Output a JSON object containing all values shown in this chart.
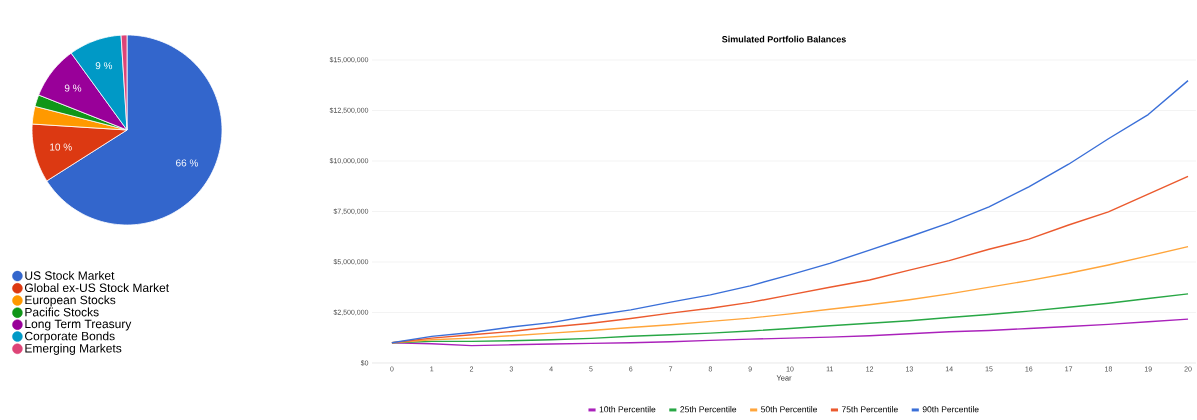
{
  "chart_data": [
    {
      "type": "pie",
      "categories": [
        "US Stock Market",
        "Global ex-US Stock Market",
        "European Stocks",
        "Pacific Stocks",
        "Long Term Treasury",
        "Corporate Bonds",
        "Emerging Markets"
      ],
      "values": [
        66,
        10,
        3,
        2,
        9,
        9,
        1
      ],
      "colors": [
        "#3366cc",
        "#dc3912",
        "#ff9900",
        "#109618",
        "#990099",
        "#0099c6",
        "#dd4477"
      ],
      "value_labels": [
        "66 %",
        "10 %",
        null,
        null,
        "9 %",
        "9 %",
        null
      ],
      "legend": "bottom"
    },
    {
      "type": "line",
      "title": "Simulated Portfolio Balances",
      "xlabel": "Year",
      "x": [
        0,
        1,
        2,
        3,
        4,
        5,
        6,
        7,
        8,
        9,
        10,
        11,
        12,
        13,
        14,
        15,
        16,
        17,
        18,
        19,
        20
      ],
      "series": [
        {
          "name": "10th Percentile",
          "color": "#aa22bb",
          "values": [
            1000000,
            950000,
            860000,
            900000,
            940000,
            970000,
            1000000,
            1050000,
            1120000,
            1180000,
            1230000,
            1280000,
            1350000,
            1450000,
            1550000,
            1610000,
            1710000,
            1810000,
            1910000,
            2040000,
            2170000
          ]
        },
        {
          "name": "25th Percentile",
          "color": "#28a745",
          "values": [
            1000000,
            1070000,
            1070000,
            1100000,
            1150000,
            1220000,
            1320000,
            1400000,
            1480000,
            1580000,
            1710000,
            1840000,
            1970000,
            2090000,
            2250000,
            2400000,
            2570000,
            2760000,
            2960000,
            3190000,
            3420000
          ]
        },
        {
          "name": "50th Percentile",
          "color": "#ffa53b",
          "values": [
            1000000,
            1150000,
            1230000,
            1350000,
            1480000,
            1610000,
            1760000,
            1890000,
            2060000,
            2220000,
            2430000,
            2660000,
            2880000,
            3130000,
            3420000,
            3750000,
            4080000,
            4440000,
            4850000,
            5300000,
            5760000
          ]
        },
        {
          "name": "75th Percentile",
          "color": "#eb5a2e",
          "values": [
            1000000,
            1230000,
            1400000,
            1560000,
            1780000,
            1970000,
            2200000,
            2470000,
            2710000,
            3000000,
            3370000,
            3750000,
            4110000,
            4600000,
            5070000,
            5630000,
            6130000,
            6830000,
            7480000,
            8360000,
            9240000
          ]
        },
        {
          "name": "90th Percentile",
          "color": "#3a6fd8",
          "values": [
            1000000,
            1320000,
            1510000,
            1780000,
            2000000,
            2340000,
            2630000,
            3010000,
            3370000,
            3820000,
            4360000,
            4930000,
            5590000,
            6250000,
            6940000,
            7730000,
            8720000,
            9840000,
            11100000,
            12300000,
            13980000
          ]
        }
      ],
      "xlim": [
        -0.5,
        20.2
      ],
      "ylim": [
        0,
        15000000
      ],
      "xticks": [
        0,
        1,
        2,
        3,
        4,
        5,
        6,
        7,
        8,
        9,
        10,
        11,
        12,
        13,
        14,
        15,
        16,
        17,
        18,
        19,
        20
      ],
      "yticks": [
        {
          "value": 0,
          "label": "$0"
        },
        {
          "value": 2500000,
          "label": "$2,500,000"
        },
        {
          "value": 5000000,
          "label": "$5,000,000"
        },
        {
          "value": 7500000,
          "label": "$7,500,000"
        },
        {
          "value": 10000000,
          "label": "$10,000,000"
        },
        {
          "value": 12500000,
          "label": "$12,500,000"
        },
        {
          "value": 15000000,
          "label": "$15,000,000"
        }
      ],
      "grid": "y",
      "legend": "bottom"
    }
  ]
}
